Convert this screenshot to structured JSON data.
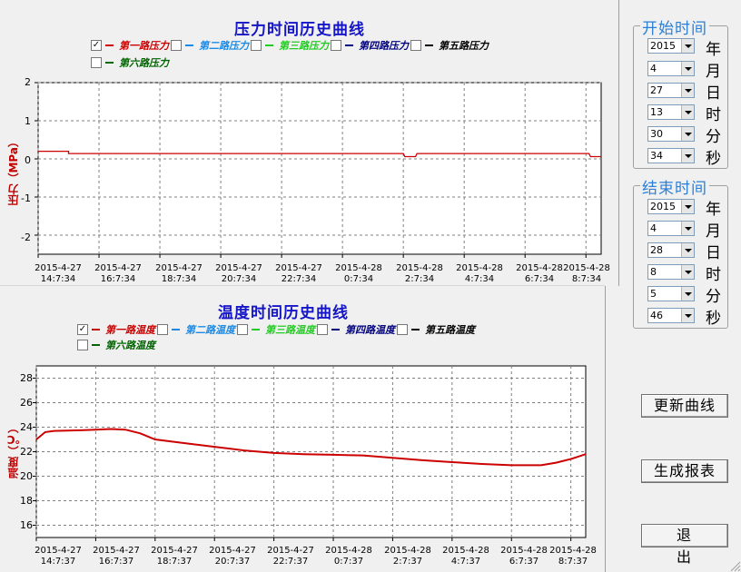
{
  "pressure_chart": {
    "title": "压力时间历史曲线",
    "legend": [
      {
        "checked": true,
        "color": "#cc0000",
        "label": "第一路压力"
      },
      {
        "checked": false,
        "color": "#1a8ae6",
        "label": "第二路压力"
      },
      {
        "checked": false,
        "color": "#22cc22",
        "label": "第三路压力"
      },
      {
        "checked": false,
        "color": "#000080",
        "label": "第四路压力"
      },
      {
        "checked": false,
        "color": "#000000",
        "label": "第五路压力"
      },
      {
        "checked": false,
        "color": "#006400",
        "label": "第六路压力"
      }
    ],
    "ylabel": "压力（MPa）",
    "yticks": [
      "2",
      "1",
      "0",
      "-1",
      "-2"
    ],
    "xticks": [
      "2015-4-27\n14:7:34",
      "2015-4-27\n16:7:34",
      "2015-4-27\n18:7:34",
      "2015-4-27\n20:7:34",
      "2015-4-27\n22:7:34",
      "2015-4-28\n0:7:34",
      "2015-4-28\n2:7:34",
      "2015-4-28\n4:7:34",
      "2015-4-28\n6:7:34",
      "2015-4-28\n8:7:34"
    ]
  },
  "temperature_chart": {
    "title": "温度时间历史曲线",
    "legend": [
      {
        "checked": true,
        "color": "#cc0000",
        "label": "第一路温度"
      },
      {
        "checked": false,
        "color": "#1a8ae6",
        "label": "第二路温度"
      },
      {
        "checked": false,
        "color": "#22cc22",
        "label": "第三路温度"
      },
      {
        "checked": false,
        "color": "#000080",
        "label": "第四路温度"
      },
      {
        "checked": false,
        "color": "#000000",
        "label": "第五路温度"
      },
      {
        "checked": false,
        "color": "#006400",
        "label": "第六路温度"
      }
    ],
    "ylabel": "温度（℃）",
    "yticks": [
      "28",
      "26",
      "24",
      "22",
      "20",
      "18",
      "16"
    ],
    "xticks": [
      "2015-4-27\n14:7:37",
      "2015-4-27\n16:7:37",
      "2015-4-27\n18:7:37",
      "2015-4-27\n20:7:37",
      "2015-4-27\n22:7:37",
      "2015-4-28\n0:7:37",
      "2015-4-28\n2:7:37",
      "2015-4-28\n4:7:37",
      "2015-4-28\n6:7:37",
      "2015-4-28\n8:7:37"
    ]
  },
  "chart_data": [
    {
      "type": "line",
      "title": "压力时间历史曲线",
      "ylabel": "压力（MPa）",
      "ylim": [
        -2.5,
        2
      ],
      "xlim_hours": [
        0,
        18.5
      ],
      "grid": true,
      "series": [
        {
          "name": "第一路压力",
          "color": "#cc0000",
          "x": [
            0,
            1.0,
            1.0,
            12.0,
            12.05,
            12.4,
            12.45,
            18.1,
            18.15,
            18.5
          ],
          "y": [
            0.2,
            0.2,
            0.14,
            0.14,
            0.06,
            0.06,
            0.14,
            0.14,
            0.06,
            0.06
          ]
        }
      ]
    },
    {
      "type": "line",
      "title": "温度时间历史曲线",
      "ylabel": "温度（℃）",
      "ylim": [
        15,
        29
      ],
      "xlim_hours": [
        0,
        18.5
      ],
      "grid": true,
      "series": [
        {
          "name": "第一路温度",
          "color": "#cc0000",
          "x": [
            0,
            0.3,
            0.6,
            1.5,
            2.0,
            2.5,
            3.0,
            3.5,
            4.0,
            5.0,
            6.0,
            7.0,
            8.0,
            9.0,
            10.0,
            11.0,
            12.0,
            13.0,
            14.0,
            15.0,
            16.0,
            17.0,
            17.5,
            18.0,
            18.5
          ],
          "y": [
            23.0,
            23.6,
            23.7,
            23.75,
            23.8,
            23.85,
            23.8,
            23.5,
            23.0,
            22.7,
            22.4,
            22.1,
            21.9,
            21.8,
            21.75,
            21.7,
            21.5,
            21.3,
            21.15,
            21.0,
            20.9,
            20.9,
            21.1,
            21.4,
            21.8
          ]
        }
      ]
    }
  ],
  "start_time": {
    "title": "开始时间",
    "fields": [
      {
        "value": "2015",
        "unit": "年"
      },
      {
        "value": "4",
        "unit": "月"
      },
      {
        "value": "27",
        "unit": "日"
      },
      {
        "value": "13",
        "unit": "时"
      },
      {
        "value": "30",
        "unit": "分"
      },
      {
        "value": "34",
        "unit": "秒"
      }
    ]
  },
  "end_time": {
    "title": "结束时间",
    "fields": [
      {
        "value": "2015",
        "unit": "年"
      },
      {
        "value": "4",
        "unit": "月"
      },
      {
        "value": "28",
        "unit": "日"
      },
      {
        "value": "8",
        "unit": "时"
      },
      {
        "value": "5",
        "unit": "分"
      },
      {
        "value": "46",
        "unit": "秒"
      }
    ]
  },
  "buttons": {
    "update": "更新曲线",
    "report": "生成报表",
    "exit": "退出"
  }
}
